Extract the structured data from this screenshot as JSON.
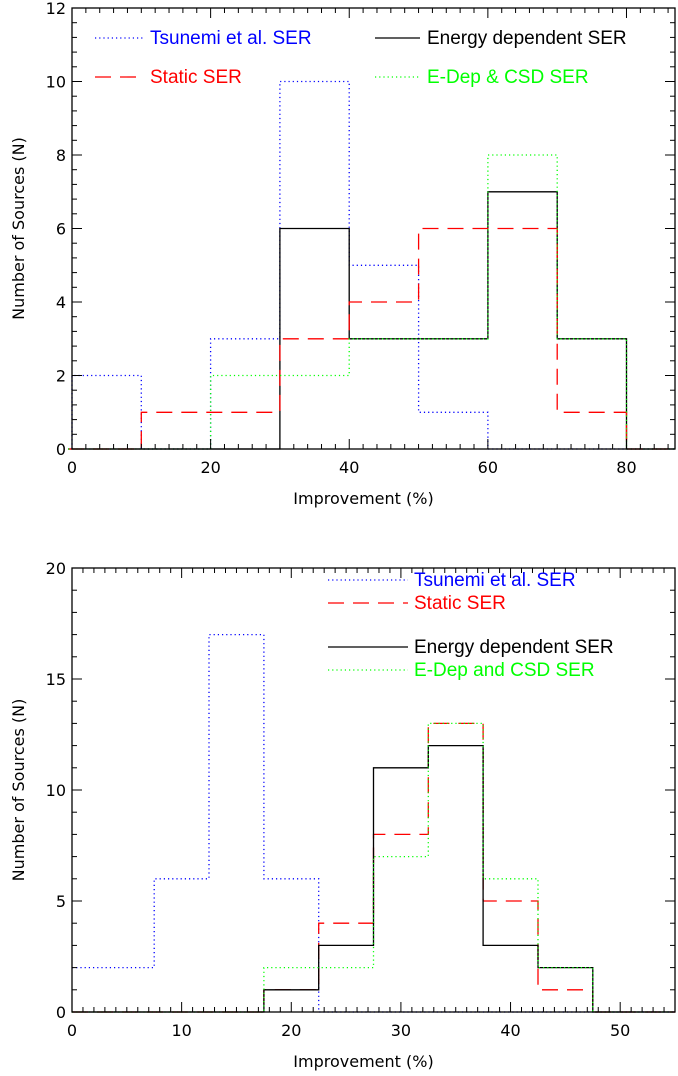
{
  "colors": {
    "tsunemi": "#0000ff",
    "static": "#ff0000",
    "energy": "#000000",
    "edep": "#00ff00"
  },
  "chart_data": [
    {
      "type": "histogram",
      "xlabel": "Improvement (%)",
      "ylabel": "Number of Sources (N)",
      "xlim": [
        0,
        87
      ],
      "ylim": [
        0,
        12
      ],
      "xticks": [
        0,
        20,
        40,
        60,
        80
      ],
      "yticks": [
        0,
        2,
        4,
        6,
        8,
        10,
        12
      ],
      "bin_edges": [
        -5,
        0,
        10,
        20,
        30,
        40,
        50,
        60,
        70,
        80,
        87
      ],
      "legend_position": "top",
      "series": [
        {
          "name": "Tsunemi et al. SER",
          "color": "tsunemi",
          "style": "dotted",
          "values": [
            0,
            2,
            0,
            3,
            10,
            5,
            1,
            0,
            0,
            0
          ]
        },
        {
          "name": "Energy dependent SER",
          "color": "energy",
          "style": "solid",
          "values": [
            0,
            0,
            0,
            0,
            6,
            3,
            3,
            7,
            3,
            0
          ]
        },
        {
          "name": "Static SER",
          "color": "static",
          "style": "dashed",
          "values": [
            0,
            0,
            1,
            1,
            3,
            4,
            6,
            6,
            1,
            0
          ]
        },
        {
          "name": "E-Dep & CSD SER",
          "color": "edep",
          "style": "dotted",
          "values": [
            0,
            0,
            0,
            2,
            2,
            3,
            3,
            8,
            3,
            0
          ]
        }
      ]
    },
    {
      "type": "histogram",
      "xlabel": "Improvement (%)",
      "ylabel": "Number of Sources (N)",
      "xlim": [
        0,
        55
      ],
      "ylim": [
        0,
        20
      ],
      "xticks": [
        0,
        10,
        20,
        30,
        40,
        50
      ],
      "yticks": [
        0,
        5,
        10,
        15,
        20
      ],
      "bin_edges": [
        0,
        7.5,
        12.5,
        17.5,
        22.5,
        27.5,
        32.5,
        37.5,
        42.5,
        47.5,
        55
      ],
      "legend_position": "top-right",
      "series": [
        {
          "name": "Tsunemi et al. SER",
          "color": "tsunemi",
          "style": "dotted",
          "values": [
            2,
            6,
            17,
            6,
            0,
            0,
            0,
            0,
            0,
            0
          ]
        },
        {
          "name": "Static SER",
          "color": "static",
          "style": "dashed",
          "values": [
            0,
            0,
            0,
            1,
            4,
            8,
            13,
            5,
            1,
            0
          ]
        },
        {
          "name": "Energy dependent SER",
          "color": "energy",
          "style": "solid",
          "values": [
            0,
            0,
            0,
            1,
            3,
            11,
            12,
            3,
            2,
            0
          ]
        },
        {
          "name": "E-Dep and CSD SER",
          "color": "edep",
          "style": "dotted",
          "values": [
            0,
            0,
            0,
            2,
            2,
            7,
            13,
            6,
            2,
            0
          ]
        }
      ]
    }
  ]
}
